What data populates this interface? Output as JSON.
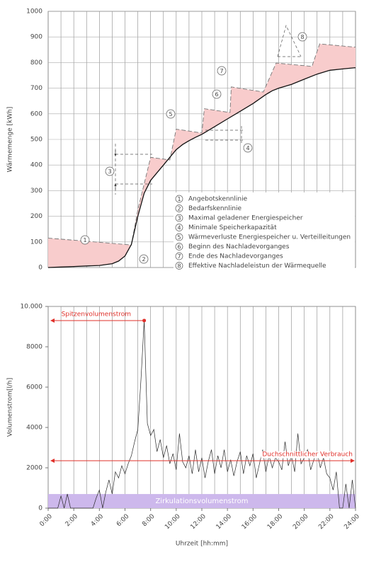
{
  "chart_data": [
    {
      "type": "line",
      "ylabel": "Wärmemenge [kWh]",
      "xlim": [
        0,
        24
      ],
      "ylim": [
        0,
        1000
      ],
      "yticks": [
        0,
        100,
        200,
        300,
        400,
        500,
        600,
        700,
        800,
        900,
        1000
      ],
      "xgrid_lines": [
        0,
        1,
        2,
        3,
        4,
        5,
        6,
        7,
        8,
        9,
        10,
        11,
        12,
        13,
        14,
        15,
        16,
        17,
        18,
        19,
        20,
        21,
        22,
        23,
        24
      ],
      "grid": true,
      "fill_color": "#f8cccc",
      "series": [
        {
          "name": "Angebotskennlinie",
          "color": "#777777",
          "dashed": true,
          "x": [
            0,
            6.5,
            7,
            8,
            9.5,
            10,
            12,
            12.2,
            14.2,
            14.3,
            16.8,
            17.8,
            20.6,
            21.2,
            24
          ],
          "values": [
            115,
            88,
            225,
            430,
            420,
            540,
            525,
            620,
            605,
            705,
            685,
            798,
            785,
            873,
            860
          ]
        },
        {
          "name": "Bedarfskennlinie",
          "color": "#111111",
          "dashed": false,
          "x": [
            0,
            1,
            2,
            3,
            4,
            5,
            5.5,
            6,
            6.5,
            7,
            7.5,
            8,
            8.5,
            9,
            9.5,
            10,
            10.5,
            11,
            11.5,
            12,
            13,
            14,
            15,
            16,
            17,
            17.5,
            18,
            19,
            20,
            21,
            22,
            23,
            24
          ],
          "values": [
            0,
            2,
            4,
            6,
            8,
            15,
            25,
            45,
            90,
            200,
            290,
            340,
            370,
            400,
            430,
            460,
            480,
            495,
            508,
            520,
            550,
            580,
            610,
            640,
            675,
            690,
            700,
            715,
            735,
            755,
            770,
            775,
            780
          ]
        }
      ],
      "legend_items": [
        {
          "number": "1",
          "label": "Angebotskennlinie"
        },
        {
          "number": "2",
          "label": "Bedarfskennlinie"
        },
        {
          "number": "3",
          "label": "Maximal geladener Energiespeicher"
        },
        {
          "number": "4",
          "label": "Minimale Speicherkapazität"
        },
        {
          "number": "5",
          "label": "Wärmeverluste Energiespeicher u. Verteilleitungen"
        },
        {
          "number": "6",
          "label": "Beginn des Nachladevorganges"
        },
        {
          "number": "7",
          "label": "Ende des Nachladevorganges"
        },
        {
          "number": "8",
          "label": "Effektive Nachladeleistun der Wärmequelle"
        }
      ]
    },
    {
      "type": "line",
      "ylabel": "Volumenstrom[l/h]",
      "xlabel": "Uhrzeit [hh:mm]",
      "xlim": [
        0,
        24
      ],
      "ylim": [
        0,
        10000
      ],
      "yticks": [
        0,
        2000,
        4000,
        6000,
        8000,
        {
          "value": 10000,
          "label": "10.000"
        }
      ],
      "xticks": [
        {
          "value": 0,
          "label": "0:00"
        },
        {
          "value": 2,
          "label": "2:00"
        },
        {
          "value": 4,
          "label": "4:00"
        },
        {
          "value": 6,
          "label": "6:00"
        },
        {
          "value": 8,
          "label": "8:00"
        },
        {
          "value": 10,
          "label": "10:00"
        },
        {
          "value": 12,
          "label": "12:00"
        },
        {
          "value": 14,
          "label": "14:00"
        },
        {
          "value": 16,
          "label": "16:00"
        },
        {
          "value": 18,
          "label": "18:00"
        },
        {
          "value": 20,
          "label": "20:00"
        },
        {
          "value": 22,
          "label": "22:00"
        },
        {
          "value": 24,
          "label": "24:00"
        }
      ],
      "xgrid_lines": [
        0,
        1,
        2,
        3,
        4,
        5,
        6,
        7,
        8,
        9,
        10,
        11,
        12,
        13,
        14,
        15,
        16,
        17,
        18,
        19,
        20,
        21,
        22,
        23,
        24
      ],
      "series": [
        {
          "name": "Volumenstrom",
          "color": "#2a2a2a",
          "x": [
            0,
            0.25,
            0.5,
            0.75,
            1,
            1.25,
            1.5,
            1.75,
            2,
            2.25,
            2.5,
            2.75,
            3,
            3.25,
            3.5,
            3.75,
            4,
            4.25,
            4.5,
            4.75,
            5,
            5.25,
            5.5,
            5.75,
            6,
            6.25,
            6.5,
            6.75,
            7,
            7.25,
            7.5,
            7.75,
            8,
            8.25,
            8.5,
            8.75,
            9,
            9.25,
            9.5,
            9.75,
            10,
            10.25,
            10.5,
            10.75,
            11,
            11.25,
            11.5,
            11.75,
            12,
            12.25,
            12.5,
            12.75,
            13,
            13.25,
            13.5,
            13.75,
            14,
            14.25,
            14.5,
            14.75,
            15,
            15.25,
            15.5,
            15.75,
            16,
            16.25,
            16.5,
            16.75,
            17,
            17.25,
            17.5,
            17.75,
            18,
            18.25,
            18.5,
            18.75,
            19,
            19.25,
            19.5,
            19.75,
            20,
            20.25,
            20.5,
            20.75,
            21,
            21.25,
            21.5,
            21.75,
            22,
            22.25,
            22.5,
            22.75,
            23,
            23.25,
            23.5,
            23.75,
            24
          ],
          "values": [
            0,
            0,
            0,
            0,
            600,
            0,
            700,
            0,
            0,
            0,
            0,
            0,
            0,
            0,
            0,
            500,
            900,
            0,
            800,
            1400,
            700,
            1800,
            1500,
            2100,
            1700,
            2200,
            2600,
            3300,
            3900,
            6400,
            9300,
            4200,
            3600,
            3900,
            2800,
            3400,
            2500,
            3100,
            2200,
            2700,
            1900,
            3700,
            2300,
            2000,
            2600,
            1700,
            2900,
            1800,
            2500,
            1500,
            2300,
            2900,
            1700,
            2600,
            2000,
            2900,
            1800,
            2400,
            1600,
            2300,
            2800,
            1700,
            2600,
            2100,
            2700,
            1500,
            2200,
            2900,
            1800,
            2600,
            2000,
            2500,
            2300,
            1900,
            3300,
            2100,
            2600,
            1800,
            3700,
            2200,
            2500,
            2900,
            1900,
            2400,
            2800,
            2000,
            2500,
            1700,
            1500,
            900,
            1800,
            0,
            0,
            1200,
            0,
            1400,
            0
          ]
        }
      ],
      "annotations": {
        "peak": {
          "label": "Spitzenvolumenstrom",
          "x": 7.5,
          "value": 9300,
          "color": "#e0302a"
        },
        "average": {
          "label": "Duchschnittlicher Verbrauch",
          "value": 2350,
          "color": "#e0302a"
        },
        "circulation": {
          "label": "Zirkulationsvolumenstrom",
          "value": 700,
          "color": "#cdb8ec"
        }
      }
    }
  ]
}
